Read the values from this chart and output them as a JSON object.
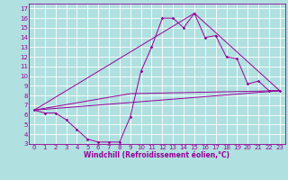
{
  "xlabel": "Windchill (Refroidissement éolien,°C)",
  "bg_color": "#b0e0e0",
  "grid_color": "#ffffff",
  "line_color": "#990099",
  "xlim": [
    -0.5,
    23.5
  ],
  "ylim": [
    3,
    17.5
  ],
  "xticks": [
    0,
    1,
    2,
    3,
    4,
    5,
    6,
    7,
    8,
    9,
    10,
    11,
    12,
    13,
    14,
    15,
    16,
    17,
    18,
    19,
    20,
    21,
    22,
    23
  ],
  "yticks": [
    3,
    4,
    5,
    6,
    7,
    8,
    9,
    10,
    11,
    12,
    13,
    14,
    15,
    16,
    17
  ],
  "line1_x": [
    0,
    1,
    2,
    3,
    4,
    5,
    6,
    7,
    8,
    9,
    10,
    11,
    12,
    13,
    14,
    15,
    16,
    17,
    18,
    19,
    20,
    21,
    22,
    23
  ],
  "line1_y": [
    6.5,
    6.2,
    6.2,
    5.5,
    4.5,
    3.5,
    3.2,
    3.2,
    3.2,
    5.8,
    10.5,
    13.0,
    16.0,
    16.0,
    15.0,
    16.5,
    14.0,
    14.2,
    12.0,
    11.8,
    9.2,
    9.5,
    8.5,
    8.5
  ],
  "line2_x": [
    0,
    23
  ],
  "line2_y": [
    6.5,
    8.5
  ],
  "line3_x": [
    0,
    15,
    23
  ],
  "line3_y": [
    6.5,
    16.5,
    8.5
  ],
  "line4_x": [
    0,
    9,
    23
  ],
  "line4_y": [
    6.5,
    8.2,
    8.5
  ],
  "tick_fontsize": 5.0,
  "label_fontsize": 5.5,
  "lw": 0.7,
  "ms": 1.8
}
